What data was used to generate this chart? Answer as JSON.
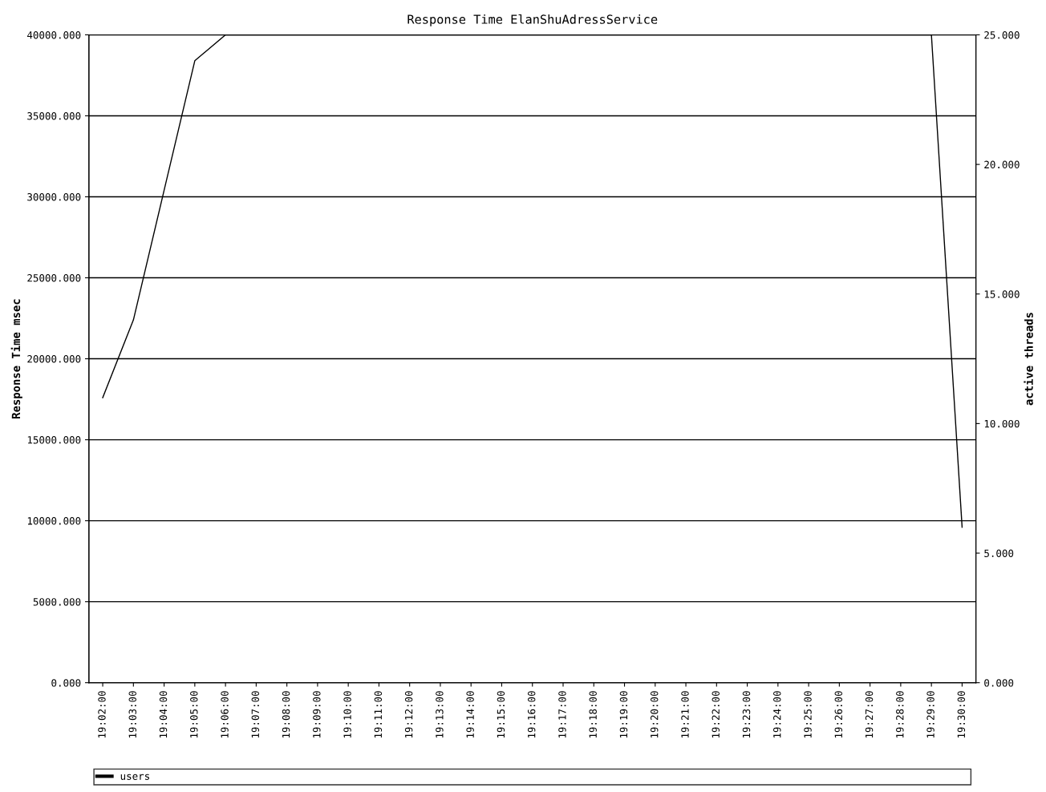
{
  "chart_data": {
    "type": "line",
    "title": "Response Time ElanShuAdressService",
    "ylabel": "Response Time msec",
    "y2label": "active threads",
    "categories": [
      "19:02:00",
      "19:03:00",
      "19:04:00",
      "19:05:00",
      "19:06:00",
      "19:07:00",
      "19:08:00",
      "19:09:00",
      "19:10:00",
      "19:11:00",
      "19:12:00",
      "19:13:00",
      "19:14:00",
      "19:15:00",
      "19:16:00",
      "19:17:00",
      "19:18:00",
      "19:19:00",
      "19:20:00",
      "19:21:00",
      "19:22:00",
      "19:23:00",
      "19:24:00",
      "19:25:00",
      "19:26:00",
      "19:27:00",
      "19:28:00",
      "19:29:00",
      "19:30:00"
    ],
    "series": [
      {
        "name": "users",
        "color": "#000000",
        "axis": "y2",
        "values": [
          11,
          14,
          19,
          24,
          25,
          25,
          25,
          25,
          25,
          25,
          25,
          25,
          25,
          25,
          25,
          25,
          25,
          25,
          25,
          25,
          25,
          25,
          25,
          25,
          25,
          25,
          25,
          25,
          6
        ]
      }
    ],
    "ylim": [
      0,
      40000
    ],
    "yticks": [
      {
        "value": 0,
        "label": "0.000"
      },
      {
        "value": 5000,
        "label": "5000.000"
      },
      {
        "value": 10000,
        "label": "10000.000"
      },
      {
        "value": 15000,
        "label": "15000.000"
      },
      {
        "value": 20000,
        "label": "20000.000"
      },
      {
        "value": 25000,
        "label": "25000.000"
      },
      {
        "value": 30000,
        "label": "30000.000"
      },
      {
        "value": 35000,
        "label": "35000.000"
      },
      {
        "value": 40000,
        "label": "40000.000"
      }
    ],
    "y2lim": [
      0,
      25
    ],
    "y2ticks": [
      {
        "value": 0,
        "label": "0.000"
      },
      {
        "value": 5,
        "label": "5.000"
      },
      {
        "value": 10,
        "label": "10.000"
      },
      {
        "value": 15,
        "label": "15.000"
      },
      {
        "value": 20,
        "label": "20.000"
      },
      {
        "value": 25,
        "label": "25.000"
      }
    ],
    "grid": "y",
    "legend": "bottom",
    "marker": "none",
    "line_style": "solid"
  }
}
